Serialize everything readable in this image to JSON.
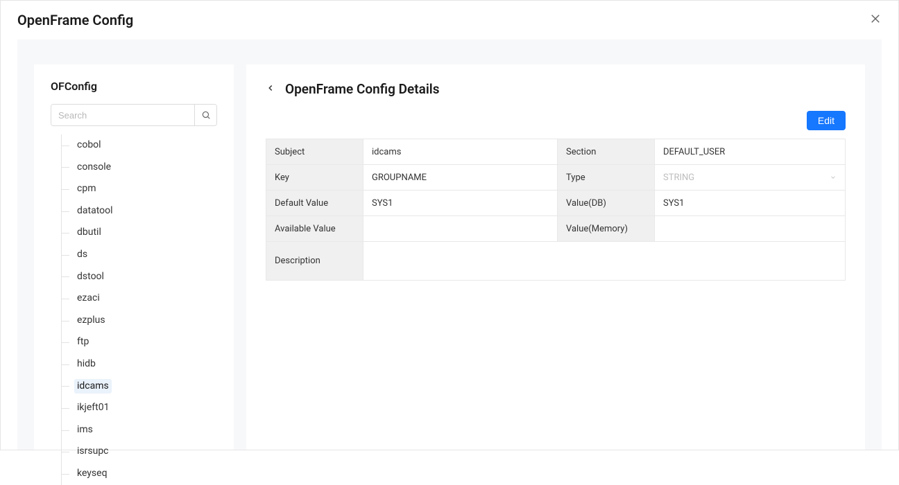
{
  "header": {
    "title": "OpenFrame Config"
  },
  "sidebar": {
    "title": "OFConfig",
    "search_placeholder": "Search",
    "items": [
      {
        "label": "cobol",
        "selected": false
      },
      {
        "label": "console",
        "selected": false
      },
      {
        "label": "cpm",
        "selected": false
      },
      {
        "label": "datatool",
        "selected": false
      },
      {
        "label": "dbutil",
        "selected": false
      },
      {
        "label": "ds",
        "selected": false
      },
      {
        "label": "dstool",
        "selected": false
      },
      {
        "label": "ezaci",
        "selected": false
      },
      {
        "label": "ezplus",
        "selected": false
      },
      {
        "label": "ftp",
        "selected": false
      },
      {
        "label": "hidb",
        "selected": false
      },
      {
        "label": "idcams",
        "selected": true
      },
      {
        "label": "ikjeft01",
        "selected": false
      },
      {
        "label": "ims",
        "selected": false
      },
      {
        "label": "isrsupc",
        "selected": false
      },
      {
        "label": "keyseq",
        "selected": false
      }
    ]
  },
  "detail": {
    "title": "OpenFrame Config Details",
    "edit_label": "Edit",
    "labels": {
      "subject": "Subject",
      "section": "Section",
      "key": "Key",
      "type": "Type",
      "default_value": "Default Value",
      "value_db": "Value(DB)",
      "available_value": "Available Value",
      "value_memory": "Value(Memory)",
      "description": "Description"
    },
    "values": {
      "subject": "idcams",
      "section": "DEFAULT_USER",
      "key": "GROUPNAME",
      "type": "STRING",
      "default_value": "SYS1",
      "value_db": "SYS1",
      "available_value": "",
      "value_memory": "",
      "description": ""
    }
  },
  "colors": {
    "primary": "#1677ff",
    "border": "#e8e8e8",
    "label_bg": "#f0f0f0",
    "body_bg": "#f7f8fa",
    "selected_bg": "#eaf2fb",
    "placeholder": "#bdbdbd"
  }
}
